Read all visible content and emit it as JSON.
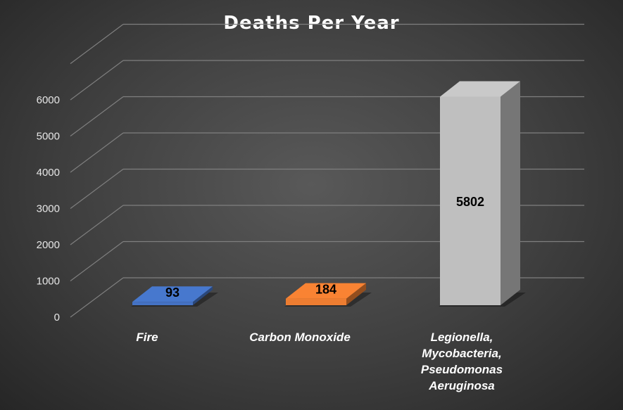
{
  "chart_data": {
    "type": "bar",
    "title": "Deaths Per Year",
    "categories": [
      "Fire",
      "Carbon Monoxide",
      [
        "Legionella,",
        "Mycobacteria,",
        "Pseudomonas",
        "Aeruginosa"
      ]
    ],
    "values": [
      93,
      184,
      5802
    ],
    "data_labels": [
      "93",
      "184",
      "5802"
    ],
    "colors": [
      "#4472c4",
      "#ed7d31",
      "#bfbfbf"
    ],
    "y_ticks": [
      "0",
      "1000",
      "2000",
      "3000",
      "4000",
      "5000",
      "6000"
    ],
    "ylim": [
      0,
      7000
    ],
    "grid": true,
    "style": "3d-column",
    "xlabel": "",
    "ylabel": ""
  }
}
